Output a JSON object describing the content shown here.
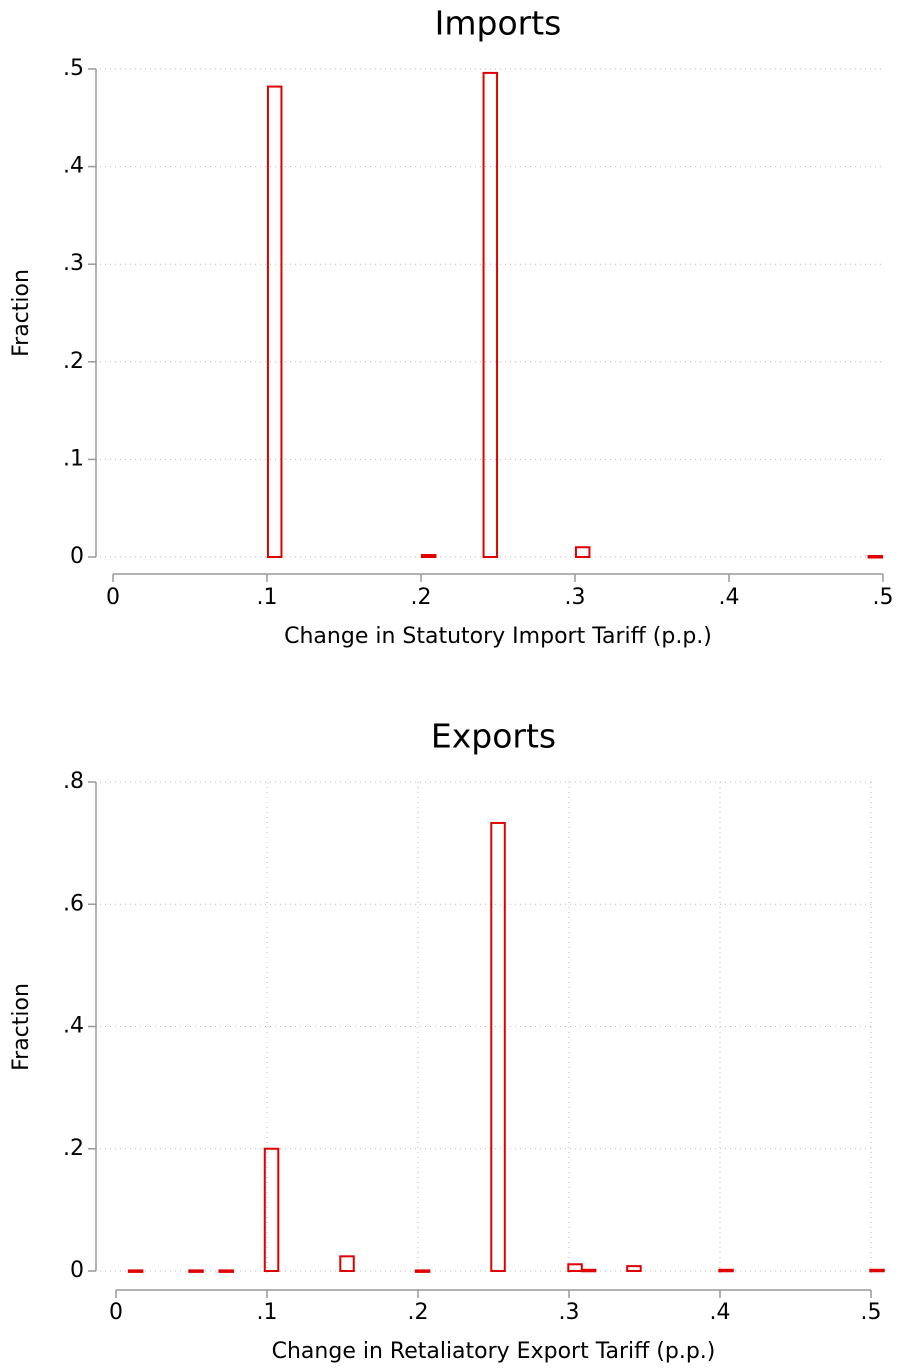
{
  "chart_data": [
    {
      "type": "bar",
      "title": "Imports",
      "xlabel": "Change in Statutory Import Tariff (p.p.)",
      "ylabel": "Fraction",
      "x": [
        0.105,
        0.205,
        0.245,
        0.305,
        0.495
      ],
      "values": [
        0.482,
        0.002,
        0.496,
        0.01,
        0.001
      ],
      "color": "#e00000",
      "xlim": [
        0,
        0.5
      ],
      "ylim": [
        0,
        0.5
      ],
      "xticks": [
        0,
        {
          "value": 0.1,
          "label": ".1"
        },
        {
          "value": 0.2,
          "label": ".2"
        },
        {
          "value": 0.3,
          "label": ".3"
        },
        {
          "value": 0.4,
          "label": ".4"
        },
        {
          "value": 0.5,
          "label": ".5"
        }
      ],
      "yticks": [
        0,
        {
          "value": 0.1,
          "label": ".1"
        },
        {
          "value": 0.2,
          "label": ".2"
        },
        {
          "value": 0.3,
          "label": ".3"
        },
        {
          "value": 0.4,
          "label": ".4"
        },
        {
          "value": 0.5,
          "label": ".5"
        }
      ],
      "grid": true,
      "xgrid": false
    },
    {
      "type": "bar",
      "title": "Exports",
      "xlabel": "Change in Retaliatory Export Tariff (p.p.)",
      "ylabel": "Fraction",
      "x": [
        0.013,
        0.053,
        0.073,
        0.103,
        0.153,
        0.203,
        0.253,
        0.304,
        0.313,
        0.343,
        0.404,
        0.504
      ],
      "values": [
        0.001,
        0.001,
        0.001,
        0.2,
        0.024,
        0.001,
        0.733,
        0.011,
        0.002,
        0.008,
        0.002,
        0.002
      ],
      "color": "#e00000",
      "xlim": [
        0,
        0.5
      ],
      "ylim": [
        0,
        0.8
      ],
      "xticks": [
        0,
        {
          "value": 0.1,
          "label": ".1"
        },
        {
          "value": 0.2,
          "label": ".2"
        },
        {
          "value": 0.3,
          "label": ".3"
        },
        {
          "value": 0.4,
          "label": ".4"
        },
        {
          "value": 0.5,
          "label": ".5"
        }
      ],
      "yticks": [
        0,
        {
          "value": 0.2,
          "label": ".2"
        },
        {
          "value": 0.4,
          "label": ".4"
        },
        {
          "value": 0.6,
          "label": ".6"
        },
        {
          "value": 0.8,
          "label": ".8"
        }
      ],
      "grid": true,
      "xgrid": true
    }
  ]
}
